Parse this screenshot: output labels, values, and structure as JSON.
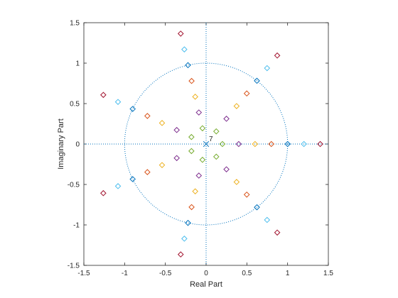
{
  "chart_data": {
    "type": "scatter",
    "title": "",
    "xlabel": "Real Part",
    "ylabel": "Imaginary Part",
    "xlim": [
      -1.5,
      1.5
    ],
    "ylim": [
      -1.5,
      1.5
    ],
    "xticks": [
      -1.5,
      -1,
      -0.5,
      0,
      0.5,
      1,
      1.5
    ],
    "yticks": [
      -1.5,
      -1,
      -0.5,
      0,
      0.5,
      1,
      1.5
    ],
    "xtick_labels": [
      "-1.5",
      "-1",
      "-0.5",
      "0",
      "0.5",
      "1",
      "1.5"
    ],
    "ytick_labels": [
      "-1.5",
      "-1",
      "-0.5",
      "0",
      "0.5",
      "1",
      "1.5"
    ],
    "grid": false,
    "unit_circle": true,
    "pole_marker": {
      "x": 0,
      "y": 0,
      "count_label": "7"
    },
    "zero_angles_deg": [
      0,
      51.43,
      102.86,
      154.29,
      205.71,
      257.14,
      308.57
    ],
    "series": [
      {
        "radius": 0.2,
        "color": "#77ac30"
      },
      {
        "radius": 0.4,
        "color": "#7e2f8e"
      },
      {
        "radius": 0.6,
        "color": "#edb120"
      },
      {
        "radius": 0.8,
        "color": "#d95319"
      },
      {
        "radius": 1.0,
        "color": "#0072bd"
      },
      {
        "radius": 1.2,
        "color": "#4dbeee"
      },
      {
        "radius": 1.4,
        "color": "#a2142f"
      }
    ],
    "axis_color": "#0072bd"
  }
}
